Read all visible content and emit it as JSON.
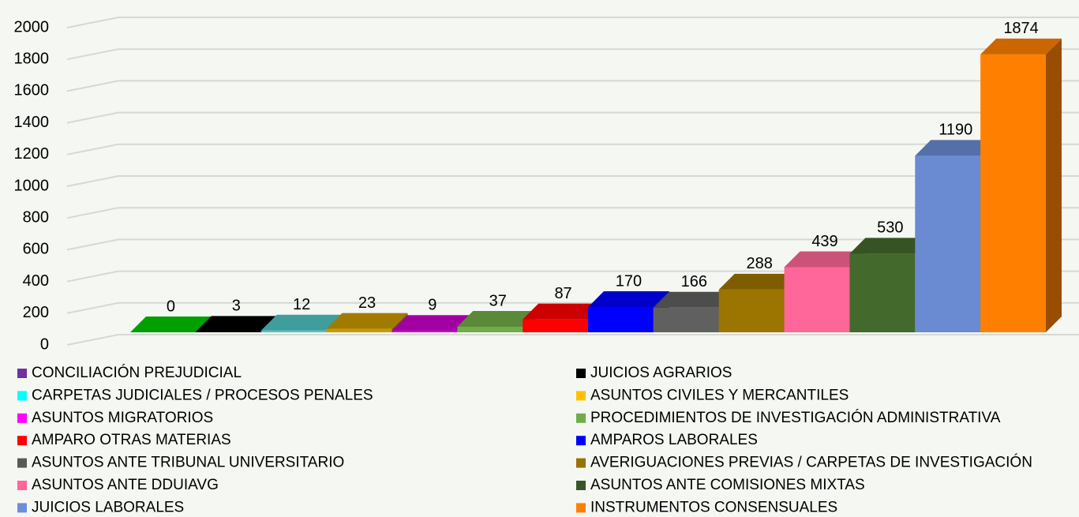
{
  "chart_data": {
    "type": "bar",
    "categories": [
      "CONCILIACIÓN PREJUDICIAL",
      "JUICIOS AGRARIOS",
      "CARPETAS JUDICIALES / PROCESOS PENALES",
      "ASUNTOS CIVILES Y MERCANTILES",
      "ASUNTOS MIGRATORIOS",
      "PROCEDIMIENTOS DE INVESTIGACIÓN ADMINISTRATIVA",
      "AMPARO OTRAS MATERIAS",
      "AMPAROS LABORALES",
      "ASUNTOS ANTE TRIBUNAL UNIVERSITARIO",
      "AVERIGUACIONES PREVIAS / CARPETAS DE INVESTIGACIÓN",
      "ASUNTOS ANTE DDUIAVG",
      "ASUNTOS ANTE COMISIONES MIXTAS",
      "JUICIOS LABORALES",
      "INSTRUMENTOS CONSENSUALES"
    ],
    "values": [
      0,
      3,
      12,
      23,
      9,
      37,
      87,
      170,
      166,
      288,
      439,
      530,
      1190,
      1874
    ],
    "colors": [
      "#00c800",
      "#000000",
      "#4fc4c4",
      "#c89a00",
      "#cc00cc",
      "#70ad47",
      "#ff0000",
      "#0000ff",
      "#606060",
      "#9c7400",
      "#ff6699",
      "#44692c",
      "#6a8bd2",
      "#ff8000"
    ],
    "legend_colors": [
      "#7030a0",
      "#000000",
      "#00ffff",
      "#ffc000",
      "#ff00ff",
      "#70ad47",
      "#ff0000",
      "#0000ff",
      "#595959",
      "#997300",
      "#ff6699",
      "#375623",
      "#6a8fd8",
      "#ff8000"
    ],
    "ylim": [
      0,
      2000
    ],
    "yticks": [
      0,
      200,
      400,
      600,
      800,
      1000,
      1200,
      1400,
      1600,
      1800,
      2000
    ],
    "grid": true,
    "legend": "bottom"
  }
}
